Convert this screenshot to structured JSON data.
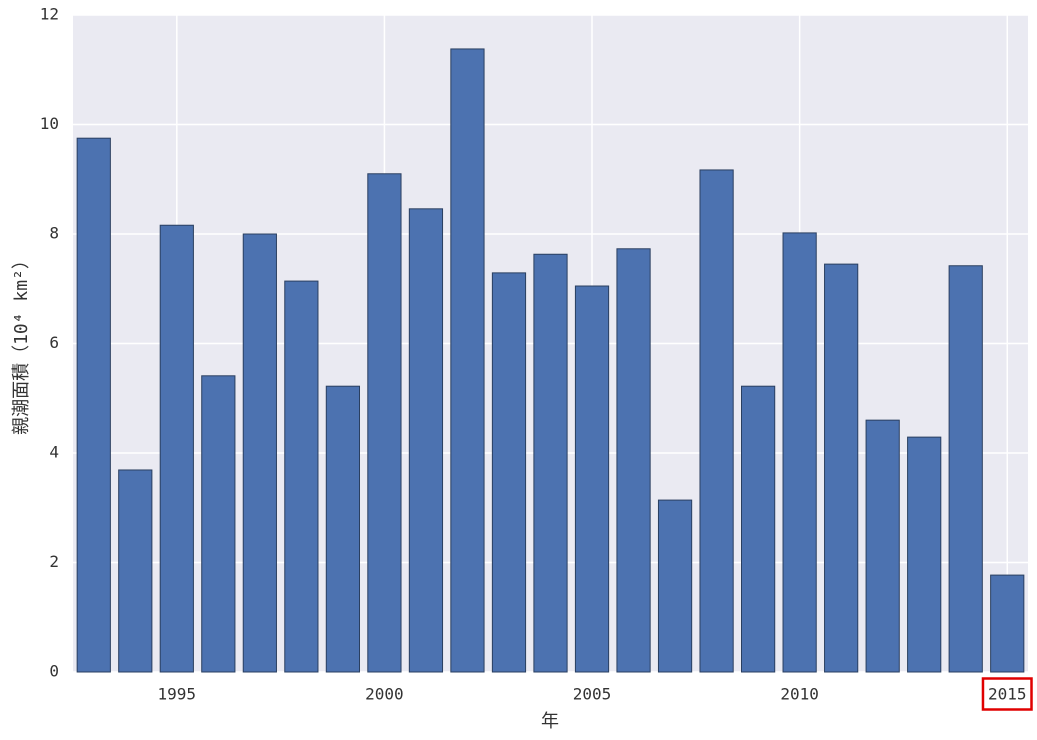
{
  "chart_data": {
    "type": "bar",
    "xlabel": "年",
    "ylabel": "親潮面積（10⁴ km²）",
    "x": [
      1993,
      1994,
      1995,
      1996,
      1997,
      1998,
      1999,
      2000,
      2001,
      2002,
      2003,
      2004,
      2005,
      2006,
      2007,
      2008,
      2009,
      2010,
      2011,
      2012,
      2013,
      2014,
      2015
    ],
    "values": [
      9.75,
      3.69,
      8.16,
      5.41,
      8.0,
      7.14,
      5.22,
      9.1,
      8.46,
      11.38,
      7.29,
      7.63,
      7.05,
      7.73,
      3.14,
      9.17,
      5.22,
      8.02,
      7.45,
      4.6,
      4.29,
      7.42,
      1.77
    ],
    "color": "#4c72b0",
    "xlim": [
      1992.5,
      2015.5
    ],
    "xticks": [
      1995,
      2000,
      2005,
      2010,
      2015
    ],
    "ylim": [
      0,
      12
    ],
    "yticks": [
      0,
      2,
      4,
      6,
      8,
      10,
      12
    ],
    "grid": true
  }
}
